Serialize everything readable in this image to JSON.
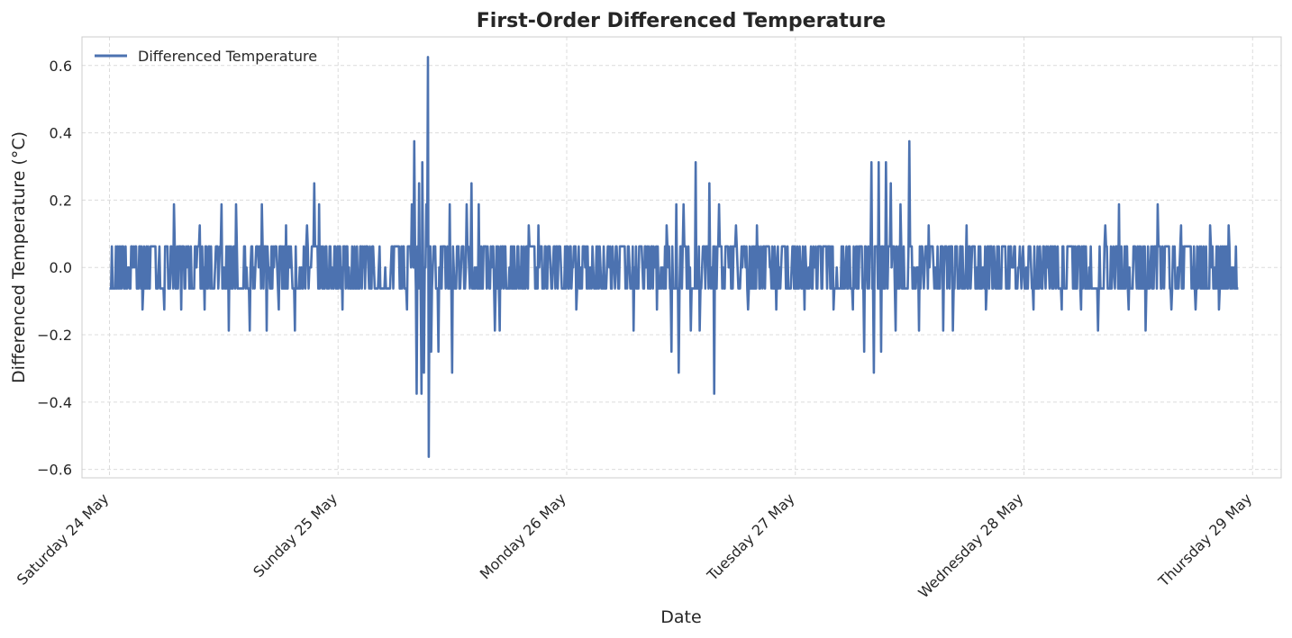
{
  "chart_data": {
    "type": "line",
    "title": "First-Order Differenced Temperature",
    "xlabel": "Date",
    "ylabel": "Differenced Temperature (°C)",
    "x_ticks": [
      {
        "date": "2025-05-24",
        "label": "Saturday 24 May"
      },
      {
        "date": "2025-05-25",
        "label": "Sunday 25 May"
      },
      {
        "date": "2025-05-26",
        "label": "Monday 26 May"
      },
      {
        "date": "2025-05-27",
        "label": "Tuesday 27 May"
      },
      {
        "date": "2025-05-28",
        "label": "Wednesday 28 May"
      },
      {
        "date": "2025-05-29",
        "label": "Thursday 29 May"
      }
    ],
    "xlim": [
      "2025-05-23T21:07",
      "2025-05-29T03:00"
    ],
    "y_ticks": [
      {
        "value": 0.6,
        "label": "0.6"
      },
      {
        "value": 0.4,
        "label": "0.4"
      },
      {
        "value": 0.2,
        "label": "0.2"
      },
      {
        "value": 0.0,
        "label": "0.0"
      },
      {
        "value": -0.2,
        "label": "−0.2"
      },
      {
        "value": -0.4,
        "label": "−0.4"
      },
      {
        "value": -0.6,
        "label": "−0.6"
      }
    ],
    "ylim": [
      -0.625,
      0.685
    ],
    "grid": true,
    "legend_position": "upper-left",
    "series": [
      {
        "name": "Differenced Temperature",
        "color": "#4c72b0",
        "x_start": "2025-05-24T00:00",
        "x_end": "2025-05-28T22:30",
        "quantization_step": 0.0625,
        "points": [
          [
            "2025-05-24T01:00",
            0.0625
          ],
          [
            "2025-05-24T03:30",
            -0.125
          ],
          [
            "2025-05-24T05:45",
            -0.125
          ],
          [
            "2025-05-24T06:45",
            0.1875
          ],
          [
            "2025-05-24T07:30",
            -0.125
          ],
          [
            "2025-05-24T09:30",
            0.125
          ],
          [
            "2025-05-24T10:00",
            -0.125
          ],
          [
            "2025-05-24T11:45",
            0.1875
          ],
          [
            "2025-05-24T12:30",
            -0.1875
          ],
          [
            "2025-05-24T13:15",
            0.1875
          ],
          [
            "2025-05-24T14:45",
            -0.1875
          ],
          [
            "2025-05-24T16:00",
            0.1875
          ],
          [
            "2025-05-24T16:30",
            -0.1875
          ],
          [
            "2025-05-24T17:45",
            -0.125
          ],
          [
            "2025-05-24T18:30",
            0.125
          ],
          [
            "2025-05-24T19:30",
            -0.1875
          ],
          [
            "2025-05-24T20:45",
            0.125
          ],
          [
            "2025-05-24T21:30",
            0.25
          ],
          [
            "2025-05-24T22:00",
            0.1875
          ],
          [
            "2025-05-25T00:15",
            0.0625
          ],
          [
            "2025-05-25T00:30",
            -0.125
          ],
          [
            "2025-05-25T02:00",
            0.0625
          ],
          [
            "2025-05-25T05:45",
            0.0625
          ],
          [
            "2025-05-25T07:15",
            -0.125
          ],
          [
            "2025-05-25T07:45",
            0.1875
          ],
          [
            "2025-05-25T08:00",
            0.375
          ],
          [
            "2025-05-25T08:15",
            -0.375
          ],
          [
            "2025-05-25T08:30",
            0.25
          ],
          [
            "2025-05-25T08:45",
            -0.375
          ],
          [
            "2025-05-25T08:50",
            0.3125
          ],
          [
            "2025-05-25T09:00",
            -0.3125
          ],
          [
            "2025-05-25T09:15",
            0.1875
          ],
          [
            "2025-05-25T09:25",
            0.625
          ],
          [
            "2025-05-25T09:30",
            -0.5625
          ],
          [
            "2025-05-25T09:45",
            -0.25
          ],
          [
            "2025-05-25T10:30",
            -0.25
          ],
          [
            "2025-05-25T11:45",
            0.1875
          ],
          [
            "2025-05-25T12:00",
            -0.3125
          ],
          [
            "2025-05-25T13:30",
            0.1875
          ],
          [
            "2025-05-25T14:00",
            0.25
          ],
          [
            "2025-05-25T14:45",
            0.1875
          ],
          [
            "2025-05-25T16:30",
            -0.1875
          ],
          [
            "2025-05-25T17:00",
            -0.1875
          ],
          [
            "2025-05-25T20:00",
            0.125
          ],
          [
            "2025-05-25T21:00",
            0.125
          ],
          [
            "2025-05-26T01:00",
            -0.125
          ],
          [
            "2025-05-26T07:00",
            -0.1875
          ],
          [
            "2025-05-26T07:45",
            0.0625
          ],
          [
            "2025-05-26T09:00",
            0.0625
          ],
          [
            "2025-05-26T09:30",
            -0.125
          ],
          [
            "2025-05-26T10:30",
            0.125
          ],
          [
            "2025-05-26T11:00",
            -0.25
          ],
          [
            "2025-05-26T11:30",
            0.1875
          ],
          [
            "2025-05-26T11:45",
            -0.3125
          ],
          [
            "2025-05-26T12:15",
            0.1875
          ],
          [
            "2025-05-26T13:00",
            -0.1875
          ],
          [
            "2025-05-26T13:30",
            0.3125
          ],
          [
            "2025-05-26T14:00",
            -0.1875
          ],
          [
            "2025-05-26T15:00",
            0.25
          ],
          [
            "2025-05-26T15:30",
            -0.375
          ],
          [
            "2025-05-26T16:00",
            0.1875
          ],
          [
            "2025-05-26T17:45",
            0.125
          ],
          [
            "2025-05-26T19:00",
            -0.125
          ],
          [
            "2025-05-26T20:00",
            0.125
          ],
          [
            "2025-05-26T22:00",
            -0.125
          ],
          [
            "2025-05-27T01:00",
            -0.125
          ],
          [
            "2025-05-27T04:00",
            -0.125
          ],
          [
            "2025-05-27T06:00",
            -0.125
          ],
          [
            "2025-05-27T07:15",
            -0.25
          ],
          [
            "2025-05-27T08:00",
            0.3125
          ],
          [
            "2025-05-27T08:15",
            -0.3125
          ],
          [
            "2025-05-27T08:45",
            0.3125
          ],
          [
            "2025-05-27T09:00",
            -0.25
          ],
          [
            "2025-05-27T09:30",
            0.3125
          ],
          [
            "2025-05-27T10:00",
            0.25
          ],
          [
            "2025-05-27T10:30",
            -0.1875
          ],
          [
            "2025-05-27T11:00",
            0.1875
          ],
          [
            "2025-05-27T12:00",
            0.375
          ],
          [
            "2025-05-27T13:00",
            -0.1875
          ],
          [
            "2025-05-27T14:00",
            0.125
          ],
          [
            "2025-05-27T15:30",
            -0.1875
          ],
          [
            "2025-05-27T16:30",
            -0.1875
          ],
          [
            "2025-05-27T18:00",
            0.125
          ],
          [
            "2025-05-27T20:00",
            -0.125
          ],
          [
            "2025-05-27T22:00",
            0.0625
          ],
          [
            "2025-05-28T01:00",
            -0.125
          ],
          [
            "2025-05-28T04:00",
            -0.125
          ],
          [
            "2025-05-28T06:00",
            -0.125
          ],
          [
            "2025-05-28T07:45",
            -0.1875
          ],
          [
            "2025-05-28T08:30",
            0.125
          ],
          [
            "2025-05-28T10:00",
            0.1875
          ],
          [
            "2025-05-28T11:00",
            -0.125
          ],
          [
            "2025-05-28T12:45",
            -0.1875
          ],
          [
            "2025-05-28T14:00",
            0.1875
          ],
          [
            "2025-05-28T15:30",
            -0.125
          ],
          [
            "2025-05-28T16:30",
            0.125
          ],
          [
            "2025-05-28T18:00",
            -0.125
          ],
          [
            "2025-05-28T19:30",
            0.125
          ],
          [
            "2025-05-28T20:30",
            -0.125
          ],
          [
            "2025-05-28T21:30",
            0.125
          ]
        ]
      }
    ]
  }
}
